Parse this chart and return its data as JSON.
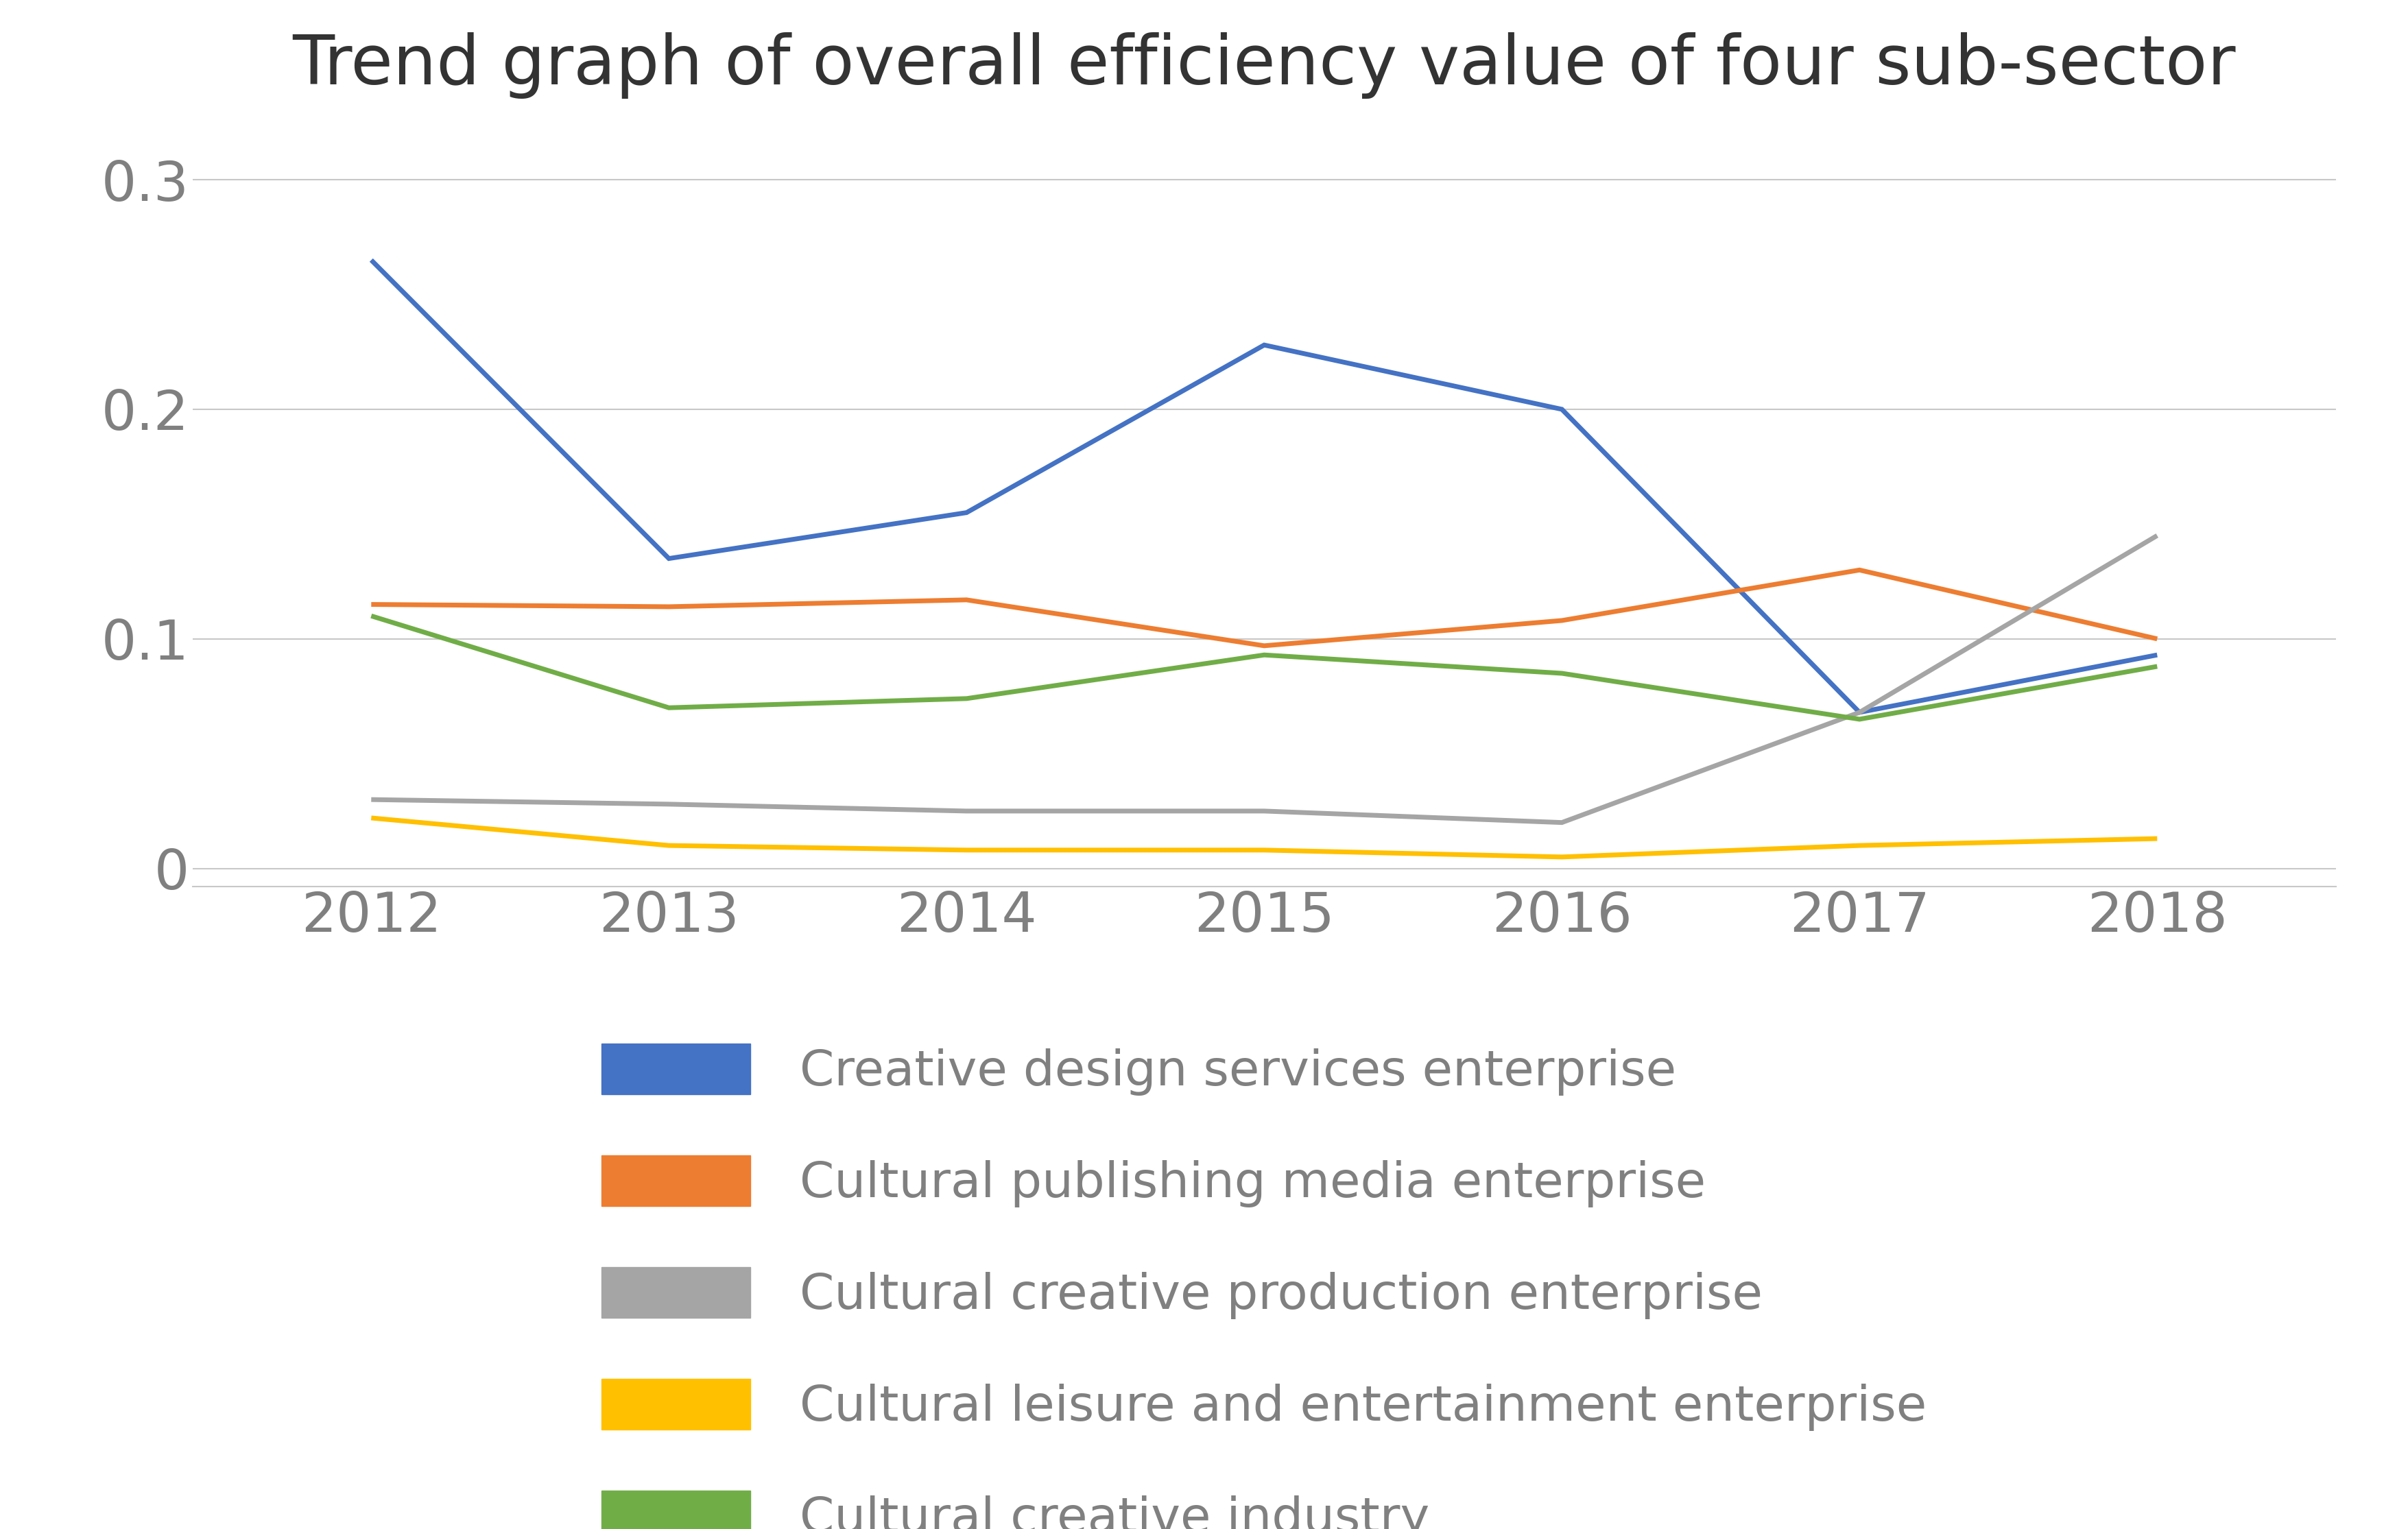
{
  "title": "Trend graph of overall efficiency value of four sub-sector",
  "years": [
    2012,
    2013,
    2014,
    2015,
    2016,
    2017,
    2018
  ],
  "series": [
    {
      "label": "Creative design services enterprise",
      "color": "#4472C4",
      "values": [
        0.265,
        0.135,
        0.155,
        0.228,
        0.2,
        0.068,
        0.093
      ]
    },
    {
      "label": "Cultural publishing media enterprise",
      "color": "#ED7D31",
      "values": [
        0.115,
        0.114,
        0.117,
        0.097,
        0.108,
        0.13,
        0.1
      ]
    },
    {
      "label": "Cultural creative production enterprise",
      "color": "#A5A5A5",
      "values": [
        0.03,
        0.028,
        0.025,
        0.025,
        0.02,
        0.068,
        0.145
      ]
    },
    {
      "label": "Cultural leisure and entertainment enterprise",
      "color": "#FFC000",
      "values": [
        0.022,
        0.01,
        0.008,
        0.008,
        0.005,
        0.01,
        0.013
      ]
    },
    {
      "label": "Cultural creative industry",
      "color": "#70AD47",
      "values": [
        0.11,
        0.07,
        0.074,
        0.093,
        0.085,
        0.065,
        0.088
      ]
    }
  ],
  "ylim": [
    -0.008,
    0.325
  ],
  "yticks": [
    0,
    0.1,
    0.2,
    0.3
  ],
  "ytick_labels": [
    "0",
    "0.1",
    "0.2",
    "0.3"
  ],
  "background_color": "#FFFFFF",
  "grid_color": "#C8C8C8",
  "title_fontsize": 72,
  "tick_fontsize": 58,
  "legend_fontsize": 52,
  "legend_text_color": "#808080",
  "tick_color": "#808080",
  "line_width": 5.0
}
